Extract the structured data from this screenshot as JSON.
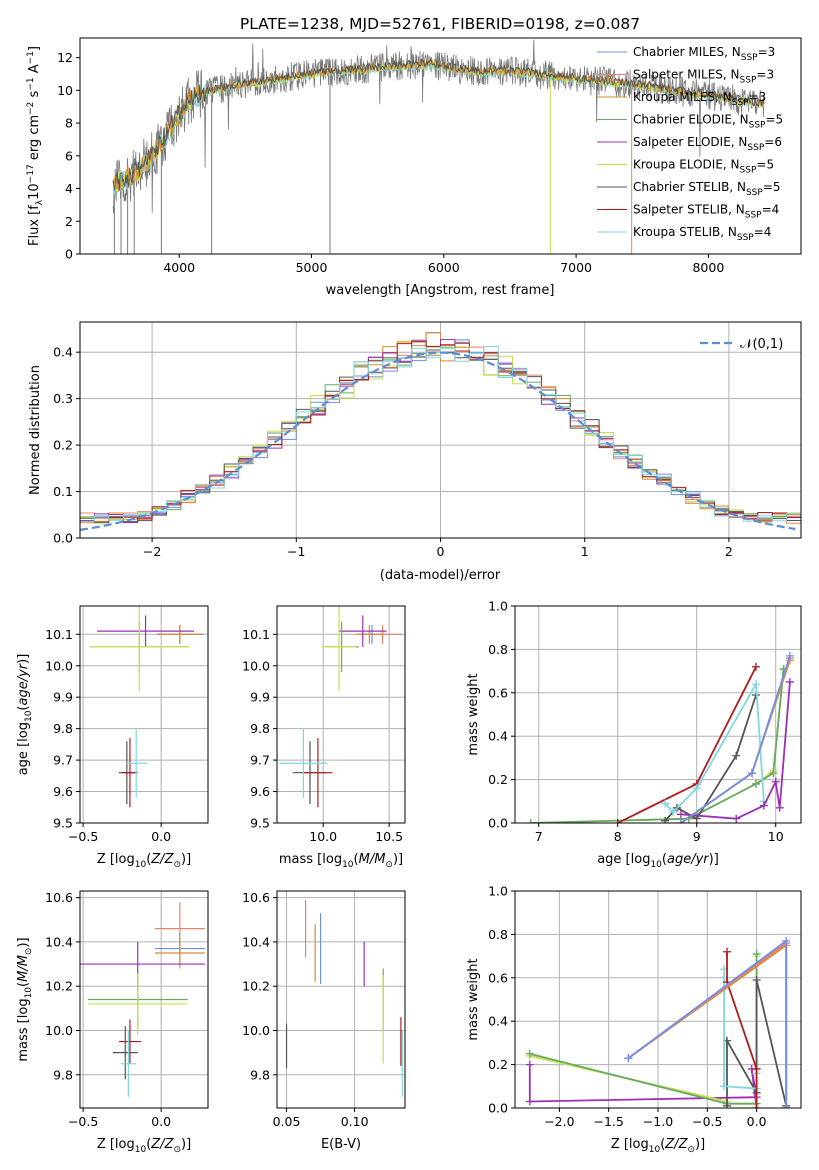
{
  "title": "PLATE=1238, MJD=52761, FIBERID=0198, z=0.087",
  "colors": {
    "Chabrier MILES": "#6f8fe8",
    "Salpeter MILES": "#e8836b",
    "Kroupa MILES": "#de8a2e",
    "Chabrier ELODIE": "#66aa66",
    "Salpeter ELODIE": "#9b30b5",
    "Kroupa ELODIE": "#c9e04a",
    "Chabrier STELIB": "#555555",
    "Salpeter STELIB": "#b01c1c",
    "Kroupa STELIB": "#7fd8e0",
    "normal": "#5b8dd6",
    "grid": "#b0b0b0"
  },
  "legend_spectrum": [
    {
      "prefix": "Chabrier MILES, N",
      "sub": "SSP",
      "suffix": "=3",
      "color": "#6f8fe8"
    },
    {
      "prefix": "Salpeter MILES, N",
      "sub": "SSP",
      "suffix": "=3",
      "color": "#e8836b"
    },
    {
      "prefix": "Kroupa MILES, N",
      "sub": "SSP",
      "suffix": "=3",
      "color": "#de8a2e"
    },
    {
      "prefix": "Chabrier ELODIE, N",
      "sub": "SSP",
      "suffix": "=5",
      "color": "#66aa66"
    },
    {
      "prefix": "Salpeter ELODIE, N",
      "sub": "SSP",
      "suffix": "=6",
      "color": "#9b30b5"
    },
    {
      "prefix": "Kroupa ELODIE, N",
      "sub": "SSP",
      "suffix": "=5",
      "color": "#c9e04a"
    },
    {
      "prefix": "Chabrier STELIB, N",
      "sub": "SSP",
      "suffix": "=5",
      "color": "#555555"
    },
    {
      "prefix": "Salpeter STELIB, N",
      "sub": "SSP",
      "suffix": "=4",
      "color": "#b01c1c"
    },
    {
      "prefix": "Kroupa STELIB, N",
      "sub": "SSP",
      "suffix": "=4",
      "color": "#7fd8e0"
    }
  ],
  "legend_hist": "𝒩(0,1)",
  "chart_data": [
    {
      "id": "spectrum",
      "type": "line",
      "xlabel": "wavelength [Angstrom, rest frame]",
      "ylabel_parts": [
        "Flux [f",
        "λ",
        "10",
        "−17",
        " erg cm",
        "−2",
        " s",
        "−1",
        " A",
        "−1",
        "]"
      ],
      "xlim": [
        3250,
        8700
      ],
      "ylim": [
        0,
        13.2
      ],
      "xticks": [
        4000,
        5000,
        6000,
        7000,
        8000
      ],
      "yticks": [
        0,
        2,
        4,
        6,
        8,
        10,
        12
      ],
      "grid": false,
      "legend": "right",
      "continuum_x": [
        3500,
        3650,
        3800,
        3900,
        4000,
        4100,
        4300,
        4500,
        4700,
        4900,
        5100,
        5300,
        5500,
        5700,
        5900,
        6100,
        6300,
        6500,
        6700,
        6900,
        7100,
        7300,
        7500,
        7700,
        7900,
        8100,
        8300,
        8450
      ],
      "continuum_y": [
        4.2,
        4.8,
        6.0,
        7.2,
        8.5,
        9.6,
        10.1,
        10.4,
        10.6,
        10.9,
        11.1,
        11.2,
        11.4,
        11.5,
        11.6,
        11.3,
        11.1,
        11.2,
        11.0,
        10.8,
        10.6,
        10.5,
        10.3,
        10.0,
        9.8,
        9.6,
        9.3,
        9.1
      ]
    },
    {
      "id": "hist",
      "type": "histogram",
      "xlabel": "(data-model)/error",
      "ylabel": "Normed distribution",
      "xlim": [
        -2.5,
        2.5
      ],
      "ylim": [
        0,
        0.465
      ],
      "xticks": [
        -2,
        -1,
        0,
        1,
        2
      ],
      "xtick_labels": [
        "−2",
        "−1",
        "0",
        "1",
        "2"
      ],
      "yticks": [
        0.0,
        0.1,
        0.2,
        0.3,
        0.4
      ],
      "ytick_labels": [
        "0.0",
        "0.1",
        "0.2",
        "0.3",
        "0.4"
      ],
      "bin_width": 0.1,
      "grid": true,
      "legend": "top-right"
    },
    {
      "id": "age_vs_Z",
      "type": "errorbar",
      "xlabel": "Z [log10(Z/Z⊙)]",
      "ylabel": "age  [log10(age/yr)]",
      "xlim": [
        -0.52,
        0.3
      ],
      "ylim": [
        9.5,
        10.19
      ],
      "xticks": [
        -0.5,
        0.0
      ],
      "yticks": [
        9.5,
        9.6,
        9.7,
        9.8,
        9.9,
        10.0,
        10.1
      ],
      "points": [
        {
          "series": "Chabrier MILES",
          "x": 0.12,
          "y": 10.1,
          "xe": 0.15,
          "ye": 0.03
        },
        {
          "series": "Salpeter MILES",
          "x": 0.12,
          "y": 10.1,
          "xe": 0.14,
          "ye": 0.03
        },
        {
          "series": "Kroupa MILES",
          "x": 0.12,
          "y": 10.1,
          "xe": 0.14,
          "ye": 0.03
        },
        {
          "series": "Salpeter ELODIE",
          "x": -0.1,
          "y": 10.11,
          "xe": 0.31,
          "ye": 0.05
        },
        {
          "series": "Chabrier ELODIE",
          "x": -0.14,
          "y": 10.06,
          "xe": 0.32,
          "ye": 0.08
        },
        {
          "series": "Kroupa ELODIE",
          "x": -0.14,
          "y": 10.06,
          "xe": 0.32,
          "ye": 0.14
        },
        {
          "series": "Chabrier STELIB",
          "x": -0.22,
          "y": 9.66,
          "xe": 0.05,
          "ye": 0.1
        },
        {
          "series": "Salpeter STELIB",
          "x": -0.2,
          "y": 9.66,
          "xe": 0.05,
          "ye": 0.11
        },
        {
          "series": "Kroupa STELIB",
          "x": -0.16,
          "y": 9.69,
          "xe": 0.07,
          "ye": 0.11
        }
      ]
    },
    {
      "id": "age_vs_mass",
      "type": "errorbar",
      "xlabel": "mass [log10(M/M⊙)]",
      "ylabel": "",
      "xlim": [
        9.65,
        10.62
      ],
      "ylim": [
        9.5,
        10.19
      ],
      "xticks": [
        10.0,
        10.5
      ],
      "yticks": [
        9.5,
        9.6,
        9.7,
        9.8,
        9.9,
        10.0,
        10.1
      ],
      "points": [
        {
          "series": "Chabrier MILES",
          "x": 10.37,
          "y": 10.1,
          "xe": 0.1,
          "ye": 0.03
        },
        {
          "series": "Salpeter MILES",
          "x": 10.45,
          "y": 10.1,
          "xe": 0.15,
          "ye": 0.03
        },
        {
          "series": "Kroupa MILES",
          "x": 10.35,
          "y": 10.1,
          "xe": 0.1,
          "ye": 0.03
        },
        {
          "series": "Salpeter ELODIE",
          "x": 10.3,
          "y": 10.11,
          "xe": 0.18,
          "ye": 0.05
        },
        {
          "series": "Chabrier ELODIE",
          "x": 10.14,
          "y": 10.06,
          "xe": 0.13,
          "ye": 0.08
        },
        {
          "series": "Kroupa ELODIE",
          "x": 10.12,
          "y": 10.06,
          "xe": 0.13,
          "ye": 0.14
        },
        {
          "series": "Chabrier STELIB",
          "x": 9.9,
          "y": 9.66,
          "xe": 0.13,
          "ye": 0.1
        },
        {
          "series": "Salpeter STELIB",
          "x": 9.96,
          "y": 9.66,
          "xe": 0.11,
          "ye": 0.11
        },
        {
          "series": "Kroupa STELIB",
          "x": 9.85,
          "y": 9.69,
          "xe": 0.18,
          "ye": 0.11
        }
      ]
    },
    {
      "id": "weight_vs_age",
      "type": "line",
      "xlabel": "age  [log10(age/yr)]",
      "ylabel": "mass weight",
      "xlim": [
        6.7,
        10.32
      ],
      "ylim": [
        0,
        1.0
      ],
      "xticks": [
        7,
        8,
        9,
        10
      ],
      "yticks": [
        0.0,
        0.2,
        0.4,
        0.6,
        0.8,
        1.0
      ],
      "grid": true,
      "series": [
        {
          "name": "Kroupa ELODIE",
          "x": [
            6.9,
            8.9,
            9.75,
            9.97,
            10.1
          ],
          "y": [
            0.0,
            0.02,
            0.18,
            0.24,
            0.71
          ]
        },
        {
          "name": "Chabrier ELODIE",
          "x": [
            6.9,
            8.9,
            9.75,
            9.97,
            10.1
          ],
          "y": [
            0.0,
            0.02,
            0.18,
            0.23,
            0.71
          ]
        },
        {
          "name": "Salpeter STELIB",
          "x": [
            8.0,
            9.0,
            9.75
          ],
          "y": [
            0.0,
            0.18,
            0.72
          ]
        },
        {
          "name": "Chabrier STELIB",
          "x": [
            8.6,
            8.75,
            9.0,
            9.5,
            9.75
          ],
          "y": [
            0.01,
            0.07,
            0.02,
            0.31,
            0.59
          ]
        },
        {
          "name": "Kroupa STELIB",
          "x": [
            8.6,
            8.7,
            9.0,
            9.75,
            9.85
          ],
          "y": [
            0.09,
            0.05,
            0.16,
            0.64,
            0.1
          ]
        },
        {
          "name": "Salpeter ELODIE",
          "x": [
            8.8,
            9.5,
            9.85,
            10.0,
            10.05,
            10.18
          ],
          "y": [
            0.04,
            0.02,
            0.08,
            0.19,
            0.07,
            0.65
          ]
        },
        {
          "name": "Kroupa MILES",
          "x": [
            8.8,
            9.7,
            10.18
          ],
          "y": [
            0.0,
            0.23,
            0.75
          ]
        },
        {
          "name": "Salpeter MILES",
          "x": [
            8.8,
            9.7,
            10.18
          ],
          "y": [
            0.0,
            0.23,
            0.76
          ]
        },
        {
          "name": "Chabrier MILES",
          "x": [
            8.8,
            9.7,
            10.18
          ],
          "y": [
            0.0,
            0.23,
            0.77
          ]
        }
      ]
    },
    {
      "id": "mass_vs_Z",
      "type": "errorbar",
      "xlabel": "Z [log10(Z/Z⊙)]",
      "ylabel": "mass [log10(M/M⊙)]",
      "xlim": [
        -0.52,
        0.3
      ],
      "ylim": [
        9.65,
        10.63
      ],
      "xticks": [
        -0.5,
        0.0
      ],
      "yticks": [
        9.8,
        10.0,
        10.2,
        10.4,
        10.6
      ],
      "points": [
        {
          "series": "Salpeter MILES",
          "x": 0.12,
          "y": 10.46,
          "xe": 0.16,
          "ye": 0.12
        },
        {
          "series": "Chabrier MILES",
          "x": 0.12,
          "y": 10.37,
          "xe": 0.16,
          "ye": 0.07
        },
        {
          "series": "Kroupa MILES",
          "x": 0.12,
          "y": 10.35,
          "xe": 0.16,
          "ye": 0.07
        },
        {
          "series": "Salpeter ELODIE",
          "x": -0.15,
          "y": 10.3,
          "xe": 0.43,
          "ye": 0.1
        },
        {
          "series": "Chabrier ELODIE",
          "x": -0.15,
          "y": 10.14,
          "xe": 0.32,
          "ye": 0.12
        },
        {
          "series": "Kroupa ELODIE",
          "x": -0.15,
          "y": 10.12,
          "xe": 0.32,
          "ye": 0.14
        },
        {
          "series": "Salpeter STELIB",
          "x": -0.2,
          "y": 9.95,
          "xe": 0.07,
          "ye": 0.1
        },
        {
          "series": "Chabrier STELIB",
          "x": -0.23,
          "y": 9.9,
          "xe": 0.08,
          "ye": 0.12
        },
        {
          "series": "Kroupa STELIB",
          "x": -0.21,
          "y": 9.85,
          "xe": 0.05,
          "ye": 0.15
        }
      ]
    },
    {
      "id": "mass_vs_EBV",
      "type": "errorbar",
      "xlabel": "E(B-V)",
      "ylabel": "",
      "xlim": [
        0.043,
        0.137
      ],
      "ylim": [
        9.65,
        10.63
      ],
      "xticks": [
        0.05,
        0.1
      ],
      "yticks": [
        9.8,
        10.0,
        10.2,
        10.4,
        10.6
      ],
      "points": [
        {
          "series": "Salpeter MILES",
          "x": 0.064,
          "y": 10.46,
          "xe": 0,
          "ye": 0.13
        },
        {
          "series": "Kroupa MILES",
          "x": 0.071,
          "y": 10.35,
          "xe": 0,
          "ye": 0.13
        },
        {
          "series": "Chabrier MILES",
          "x": 0.075,
          "y": 10.37,
          "xe": 0,
          "ye": 0.16
        },
        {
          "series": "Salpeter ELODIE",
          "x": 0.107,
          "y": 10.3,
          "xe": 0,
          "ye": 0.1
        },
        {
          "series": "Chabrier ELODIE",
          "x": 0.121,
          "y": 10.14,
          "xe": 0,
          "ye": 0.14
        },
        {
          "series": "Kroupa ELODIE",
          "x": 0.121,
          "y": 10.05,
          "xe": 0,
          "ye": 0.2
        },
        {
          "series": "Chabrier STELIB",
          "x": 0.05,
          "y": 9.93,
          "xe": 0,
          "ye": 0.1
        },
        {
          "series": "Salpeter STELIB",
          "x": 0.134,
          "y": 9.95,
          "xe": 0,
          "ye": 0.11
        },
        {
          "series": "Kroupa STELIB",
          "x": 0.135,
          "y": 9.85,
          "xe": 0,
          "ye": 0.15
        }
      ]
    },
    {
      "id": "weight_vs_Z",
      "type": "line",
      "xlabel": "Z [log10(Z/Z⊙)]",
      "ylabel": "mass weight",
      "xlim": [
        -2.45,
        0.45
      ],
      "ylim": [
        0,
        1.0
      ],
      "xticks": [
        -2.0,
        -1.5,
        -1.0,
        -0.5,
        0.0
      ],
      "xtick_labels": [
        "−2.0",
        "−1.5",
        "−1.0",
        "−0.5",
        "0.0"
      ],
      "yticks": [
        0.0,
        0.2,
        0.4,
        0.6,
        0.8,
        1.0
      ],
      "grid": true,
      "series": [
        {
          "name": "Salpeter ELODIE",
          "x": [
            -2.3,
            -2.3,
            0.0,
            -0.05,
            0.0
          ],
          "y": [
            0.2,
            0.03,
            0.05,
            0.18,
            0.0
          ]
        },
        {
          "name": "Kroupa ELODIE",
          "x": [
            -2.3,
            -0.3,
            -0.3,
            0.0,
            0.0
          ],
          "y": [
            0.24,
            0.03,
            0.02,
            0.02,
            0.7
          ]
        },
        {
          "name": "Chabrier ELODIE",
          "x": [
            -2.3,
            -0.3,
            0.0,
            0.0
          ],
          "y": [
            0.25,
            0.02,
            0.02,
            0.71
          ]
        },
        {
          "name": "Chabrier STELIB",
          "x": [
            -0.3,
            -0.3,
            0.0,
            0.0,
            0.3
          ],
          "y": [
            0.01,
            0.31,
            0.07,
            0.59,
            0.01
          ]
        },
        {
          "name": "Kroupa STELIB",
          "x": [
            -0.33,
            -0.33,
            0.0,
            0.0
          ],
          "y": [
            0.64,
            0.1,
            0.09,
            0.16
          ]
        },
        {
          "name": "Salpeter STELIB",
          "x": [
            -0.3,
            -0.3,
            0.0,
            0.0
          ],
          "y": [
            0.72,
            0.58,
            0.18,
            0.0
          ]
        },
        {
          "name": "Kroupa MILES",
          "x": [
            -1.3,
            0.3,
            0.3
          ],
          "y": [
            0.23,
            0.75,
            0.0
          ]
        },
        {
          "name": "Salpeter MILES",
          "x": [
            -1.3,
            0.3,
            0.3
          ],
          "y": [
            0.23,
            0.76,
            0.0
          ]
        },
        {
          "name": "Chabrier MILES",
          "x": [
            -1.3,
            0.3,
            0.3
          ],
          "y": [
            0.23,
            0.77,
            0.0
          ]
        }
      ]
    }
  ]
}
